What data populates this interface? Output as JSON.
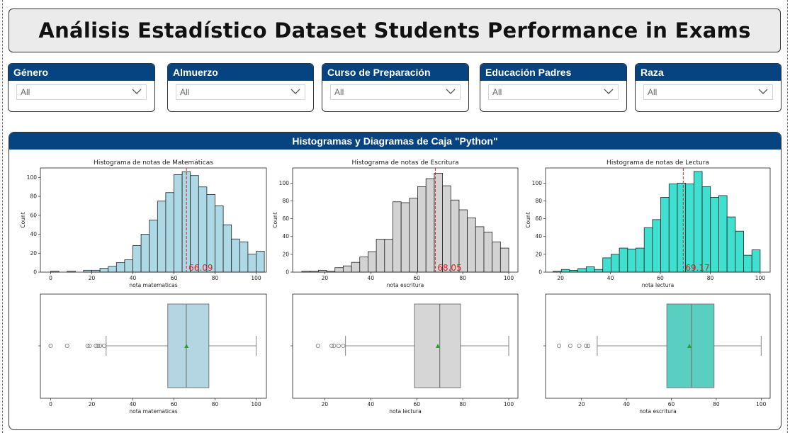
{
  "title": "Análisis Estadístico Dataset Students Performance in Exams",
  "slicers": [
    {
      "label": "Género",
      "value": "All"
    },
    {
      "label": "Almuerzo",
      "value": "All"
    },
    {
      "label": "Curso de Preparación",
      "value": "All"
    },
    {
      "label": "Educación Padres",
      "value": "All"
    },
    {
      "label": "Raza",
      "value": "All"
    }
  ],
  "panel": {
    "title": "Histogramas y Diagramas de Caja \"Python\""
  },
  "colors": {
    "header": "#054480",
    "math": "#add8e6",
    "writing": "#d3d3d3",
    "reading": "#40e0d0",
    "mean_line": "#d62728",
    "box_mean": "#2ca02c"
  },
  "chart_data": [
    {
      "type": "bar",
      "title": "Histograma de notas de Matemáticas",
      "xlabel": "nota matematicas",
      "ylabel": "Count",
      "xlim": [
        -5,
        105
      ],
      "ylim": [
        0,
        110
      ],
      "xticks": [
        0,
        20,
        40,
        60,
        80,
        100
      ],
      "yticks": [
        0,
        20,
        40,
        60,
        80,
        100
      ],
      "bin_start": 0,
      "bin_width": 4,
      "counts": [
        1,
        0,
        1,
        0,
        2,
        2,
        4,
        6,
        10,
        13,
        28,
        40,
        55,
        75,
        84,
        103,
        106,
        102,
        90,
        82,
        70,
        50,
        35,
        32,
        19,
        22
      ],
      "mean": 66.09,
      "mean_label": "66.09",
      "grid": false
    },
    {
      "type": "bar",
      "title": "Histograma de notas de Escritura",
      "xlabel": "nota escritura",
      "ylabel": "Count",
      "xlim": [
        6,
        104
      ],
      "ylim": [
        0,
        117
      ],
      "xticks": [
        20,
        40,
        60,
        80,
        100
      ],
      "yticks": [
        0,
        20,
        40,
        60,
        80,
        100
      ],
      "bin_start": 10,
      "bin_width": 3.6,
      "counts": [
        1,
        1,
        2,
        1,
        5,
        7,
        11,
        17,
        23,
        37,
        37,
        79,
        78,
        83,
        96,
        105,
        111,
        97,
        81,
        70,
        61,
        51,
        45,
        34,
        27
      ],
      "mean": 68.05,
      "mean_label": "68.05",
      "grid": false
    },
    {
      "type": "bar",
      "title": "Histograma de notas de Lectura",
      "xlabel": "nota lectura",
      "ylabel": "Count",
      "xlim": [
        14,
        104
      ],
      "ylim": [
        0,
        117
      ],
      "xticks": [
        20,
        40,
        60,
        80,
        100
      ],
      "yticks": [
        0,
        20,
        40,
        60,
        80,
        100
      ],
      "bin_start": 17,
      "bin_width": 3.32,
      "counts": [
        1,
        3,
        2,
        4,
        6,
        3,
        16,
        20,
        27,
        26,
        27,
        50,
        59,
        84,
        99,
        100,
        99,
        113,
        96,
        84,
        86,
        62,
        46,
        19,
        25
      ],
      "mean": 69.17,
      "mean_label": "69.17",
      "grid": false
    },
    {
      "type": "box",
      "xlabel": "nota matematicas",
      "xlim": [
        -5,
        105
      ],
      "xticks": [
        0,
        20,
        40,
        60,
        80,
        100
      ],
      "whisker_low": 27,
      "q1": 57,
      "median": 66,
      "q3": 77,
      "whisker_high": 100,
      "mean": 66.09,
      "outliers": [
        0,
        8,
        18,
        19,
        22,
        23,
        24,
        26
      ]
    },
    {
      "type": "box",
      "xlabel": "nota lectura",
      "xlim": [
        6,
        104
      ],
      "xticks": [
        20,
        40,
        60,
        80,
        100
      ],
      "whisker_low": 29,
      "q1": 59,
      "median": 70,
      "q3": 79,
      "whisker_high": 100,
      "mean": 69.17,
      "outliers": [
        17,
        23,
        24,
        26,
        28
      ]
    },
    {
      "type": "box",
      "xlabel": "nota escritura",
      "xlim": [
        4,
        104
      ],
      "xticks": [
        20,
        40,
        60,
        80,
        100
      ],
      "whisker_low": 27,
      "q1": 58,
      "median": 69,
      "q3": 79,
      "whisker_high": 100,
      "mean": 68.05,
      "outliers": [
        10,
        15,
        19,
        22,
        23
      ]
    }
  ]
}
